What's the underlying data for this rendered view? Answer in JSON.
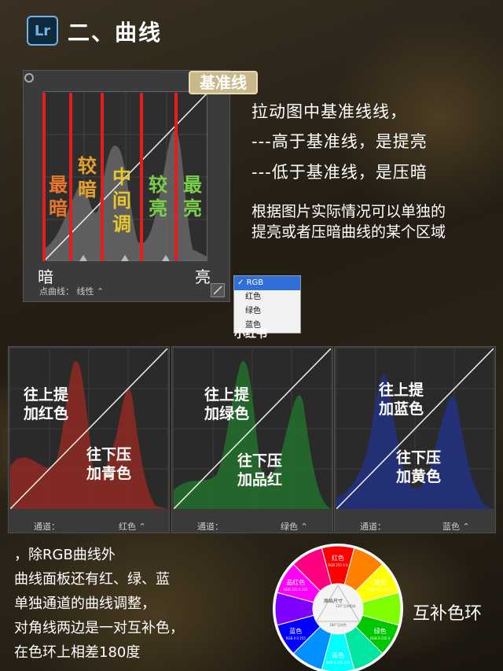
{
  "header": {
    "logo": "Lr",
    "title": "二、曲线"
  },
  "curve_panel": {
    "tag": "基准线",
    "zones": [
      "最暗",
      "较暗",
      "中间调",
      "较亮",
      "最亮"
    ],
    "dark_label": "暗",
    "light_label": "亮",
    "point_curve_mode": "点曲线：  线性  ⌃",
    "zone_colors": [
      "#e8772a",
      "#e8a22a",
      "#e8c72a",
      "#7bd04a",
      "#7bd04a"
    ]
  },
  "dropdown": {
    "items": [
      "RGB",
      "红色",
      "绿色",
      "蓝色"
    ],
    "selected": "RGB"
  },
  "watermark": "小红书",
  "explanation": {
    "line1": "拉动图中基准线线，",
    "line2": "---高于基准线，是提亮",
    "line3": "---低于基准线，是压暗",
    "note_line1": "根据图片实际情况可以单独的",
    "note_line2": "提亮或者压暗曲线的某个区域"
  },
  "channels": [
    {
      "name": "red",
      "up_l1": "往上提",
      "up_l2": "加红色",
      "down_l1": "往下压",
      "down_l2": "加青色",
      "channel_label": "通道：",
      "channel_value": "红色 ⌃",
      "color": "#c0392b"
    },
    {
      "name": "green",
      "up_l1": "往上提",
      "up_l2": "加绿色",
      "down_l1": "往下压",
      "down_l2": "加品红",
      "channel_label": "通道：",
      "channel_value": "绿色 ⌃",
      "color": "#2e9e3b"
    },
    {
      "name": "blue",
      "up_l1": "往上提",
      "up_l2": "加蓝色",
      "down_l1": "往下压",
      "down_l2": "加黄色",
      "channel_label": "通道：",
      "channel_value": "蓝色 ⌃",
      "color": "#2b3da8"
    }
  ],
  "bottom_text": {
    "l1": "，除RGB曲线外",
    "l2": "曲线面板还有红、绿、蓝",
    "l3": "单独通道的曲线调整，",
    "l4": "对角线两边是一对互补色，",
    "l5": "在色环上相差180度"
  },
  "color_wheel": {
    "label": "互补色环",
    "center_label": "原始尺寸",
    "segments": [
      {
        "name": "红色",
        "rgb": "RGB 255 0 0",
        "color": "#ff0000"
      },
      {
        "name": "",
        "rgb": "",
        "color": "#ff7f00"
      },
      {
        "name": "黄色",
        "rgb": "RGB 255 255 0",
        "color": "#ffff00"
      },
      {
        "name": "",
        "rgb": "",
        "color": "#7fff00"
      },
      {
        "name": "绿色",
        "rgb": "RGB 0 255 0",
        "color": "#00c800"
      },
      {
        "name": "",
        "rgb": "",
        "color": "#00e6a0"
      },
      {
        "name": "青色",
        "rgb": "RGB 0 255 255",
        "color": "#00ffff"
      },
      {
        "name": "",
        "rgb": "",
        "color": "#0090ff"
      },
      {
        "name": "蓝色",
        "rgb": "RGB 0 0 255",
        "color": "#0000ff"
      },
      {
        "name": "",
        "rgb": "",
        "color": "#7f00ff"
      },
      {
        "name": "品红色",
        "rgb": "RGB 255 0 255",
        "color": "#ff00ff"
      },
      {
        "name": "",
        "rgb": "",
        "color": "#ff0080"
      }
    ],
    "angle_labels": [
      "120°互补相关",
      "180°互补色"
    ]
  }
}
